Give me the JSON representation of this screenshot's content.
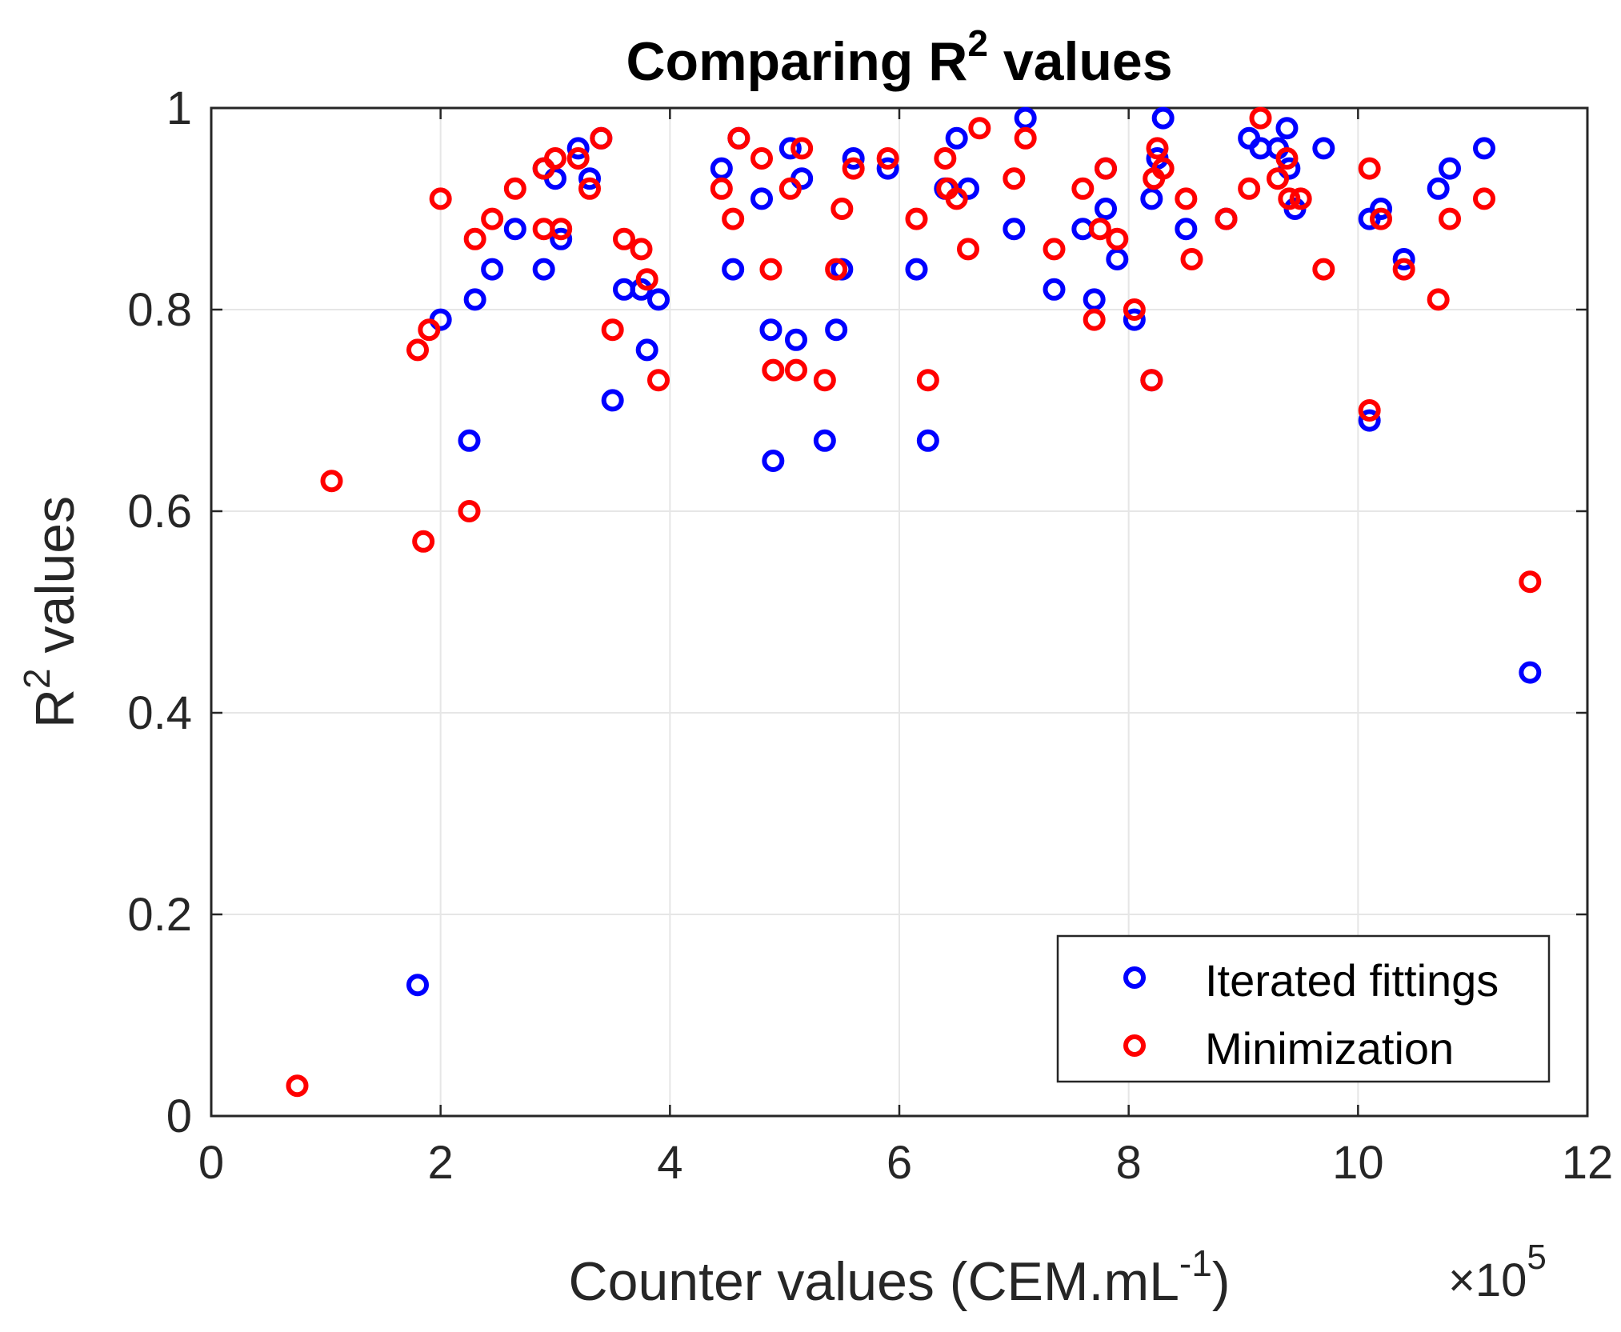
{
  "chart_data": {
    "type": "scatter",
    "title": {
      "main": "Comparing R",
      "sup": "2",
      "rest": " values"
    },
    "xlabel": {
      "main": "Counter values (CEM.mL",
      "sup": "-1",
      "rest": ")"
    },
    "ylabel": {
      "main": "R",
      "sup": "2",
      "rest": " values"
    },
    "x_exponent": {
      "base": "×10",
      "sup": "5"
    },
    "xlim": [
      0,
      12
    ],
    "ylim": [
      0,
      1
    ],
    "xticks": [
      0,
      2,
      4,
      6,
      8,
      10,
      12
    ],
    "xtick_labels": [
      "0",
      "2",
      "4",
      "6",
      "8",
      "10",
      "12"
    ],
    "yticks": [
      0,
      0.2,
      0.4,
      0.6,
      0.8,
      1
    ],
    "ytick_labels": [
      "0",
      "0.2",
      "0.4",
      "0.6",
      "0.8",
      "1"
    ],
    "grid": true,
    "legend_position": "bottom-right",
    "series": [
      {
        "name": "Iterated fittings",
        "color": "#0000ff",
        "points": [
          [
            1.8,
            0.13
          ],
          [
            2.0,
            0.79
          ],
          [
            2.25,
            0.67
          ],
          [
            2.3,
            0.81
          ],
          [
            2.45,
            0.84
          ],
          [
            2.65,
            0.88
          ],
          [
            2.9,
            0.84
          ],
          [
            2.9,
            0.94
          ],
          [
            3.0,
            0.93
          ],
          [
            3.05,
            0.87
          ],
          [
            3.2,
            0.96
          ],
          [
            3.3,
            0.93
          ],
          [
            3.4,
            0.97
          ],
          [
            3.5,
            0.71
          ],
          [
            3.6,
            0.82
          ],
          [
            3.75,
            0.82
          ],
          [
            3.8,
            0.76
          ],
          [
            3.9,
            0.81
          ],
          [
            4.45,
            0.94
          ],
          [
            4.55,
            0.84
          ],
          [
            4.6,
            0.97
          ],
          [
            4.8,
            0.91
          ],
          [
            4.88,
            0.78
          ],
          [
            4.9,
            0.65
          ],
          [
            5.05,
            0.96
          ],
          [
            5.1,
            0.77
          ],
          [
            5.15,
            0.93
          ],
          [
            5.35,
            0.67
          ],
          [
            5.45,
            0.78
          ],
          [
            5.5,
            0.84
          ],
          [
            5.6,
            0.95
          ],
          [
            5.9,
            0.94
          ],
          [
            6.15,
            0.84
          ],
          [
            6.25,
            0.67
          ],
          [
            6.4,
            0.92
          ],
          [
            6.5,
            0.97
          ],
          [
            6.6,
            0.92
          ],
          [
            7.0,
            0.88
          ],
          [
            7.1,
            0.99
          ],
          [
            7.35,
            0.82
          ],
          [
            7.6,
            0.88
          ],
          [
            7.7,
            0.81
          ],
          [
            7.8,
            0.9
          ],
          [
            7.8,
            0.94
          ],
          [
            7.9,
            0.85
          ],
          [
            8.05,
            0.79
          ],
          [
            8.2,
            0.73
          ],
          [
            8.2,
            0.91
          ],
          [
            8.25,
            0.95
          ],
          [
            8.3,
            0.99
          ],
          [
            8.5,
            0.88
          ],
          [
            8.85,
            0.89
          ],
          [
            9.05,
            0.97
          ],
          [
            9.15,
            0.96
          ],
          [
            9.3,
            0.96
          ],
          [
            9.38,
            0.98
          ],
          [
            9.4,
            0.94
          ],
          [
            9.45,
            0.9
          ],
          [
            9.7,
            0.96
          ],
          [
            10.1,
            0.69
          ],
          [
            10.1,
            0.89
          ],
          [
            10.2,
            0.9
          ],
          [
            10.4,
            0.85
          ],
          [
            10.7,
            0.92
          ],
          [
            10.8,
            0.94
          ],
          [
            11.1,
            0.96
          ],
          [
            11.5,
            0.44
          ]
        ]
      },
      {
        "name": "Minimization",
        "color": "#ff0000",
        "points": [
          [
            0.75,
            0.03
          ],
          [
            1.05,
            0.63
          ],
          [
            1.8,
            0.76
          ],
          [
            1.85,
            0.57
          ],
          [
            1.9,
            0.78
          ],
          [
            2.0,
            0.91
          ],
          [
            2.25,
            0.6
          ],
          [
            2.3,
            0.87
          ],
          [
            2.45,
            0.89
          ],
          [
            2.65,
            0.92
          ],
          [
            2.9,
            0.88
          ],
          [
            2.9,
            0.94
          ],
          [
            3.0,
            0.95
          ],
          [
            3.05,
            0.88
          ],
          [
            3.2,
            0.95
          ],
          [
            3.3,
            0.92
          ],
          [
            3.4,
            0.97
          ],
          [
            3.5,
            0.78
          ],
          [
            3.6,
            0.87
          ],
          [
            3.75,
            0.86
          ],
          [
            3.8,
            0.83
          ],
          [
            3.9,
            0.73
          ],
          [
            4.45,
            0.92
          ],
          [
            4.55,
            0.89
          ],
          [
            4.6,
            0.97
          ],
          [
            4.8,
            0.95
          ],
          [
            4.88,
            0.84
          ],
          [
            4.9,
            0.74
          ],
          [
            5.05,
            0.92
          ],
          [
            5.1,
            0.74
          ],
          [
            5.15,
            0.96
          ],
          [
            5.35,
            0.73
          ],
          [
            5.45,
            0.84
          ],
          [
            5.5,
            0.9
          ],
          [
            5.6,
            0.94
          ],
          [
            5.9,
            0.95
          ],
          [
            6.15,
            0.89
          ],
          [
            6.25,
            0.73
          ],
          [
            6.4,
            0.95
          ],
          [
            6.42,
            0.92
          ],
          [
            6.5,
            0.91
          ],
          [
            6.6,
            0.86
          ],
          [
            6.7,
            0.98
          ],
          [
            7.0,
            0.93
          ],
          [
            7.1,
            0.97
          ],
          [
            7.35,
            0.86
          ],
          [
            7.6,
            0.92
          ],
          [
            7.7,
            0.79
          ],
          [
            7.75,
            0.88
          ],
          [
            7.8,
            0.94
          ],
          [
            7.9,
            0.87
          ],
          [
            8.05,
            0.8
          ],
          [
            8.2,
            0.73
          ],
          [
            8.22,
            0.93
          ],
          [
            8.25,
            0.96
          ],
          [
            8.3,
            0.94
          ],
          [
            8.5,
            0.91
          ],
          [
            8.55,
            0.85
          ],
          [
            8.85,
            0.89
          ],
          [
            9.05,
            0.92
          ],
          [
            9.15,
            0.99
          ],
          [
            9.3,
            0.93
          ],
          [
            9.38,
            0.95
          ],
          [
            9.4,
            0.91
          ],
          [
            9.5,
            0.91
          ],
          [
            9.7,
            0.84
          ],
          [
            10.1,
            0.94
          ],
          [
            10.1,
            0.7
          ],
          [
            10.2,
            0.89
          ],
          [
            10.4,
            0.84
          ],
          [
            10.7,
            0.81
          ],
          [
            10.8,
            0.89
          ],
          [
            11.1,
            0.91
          ],
          [
            11.5,
            0.53
          ]
        ]
      }
    ]
  }
}
